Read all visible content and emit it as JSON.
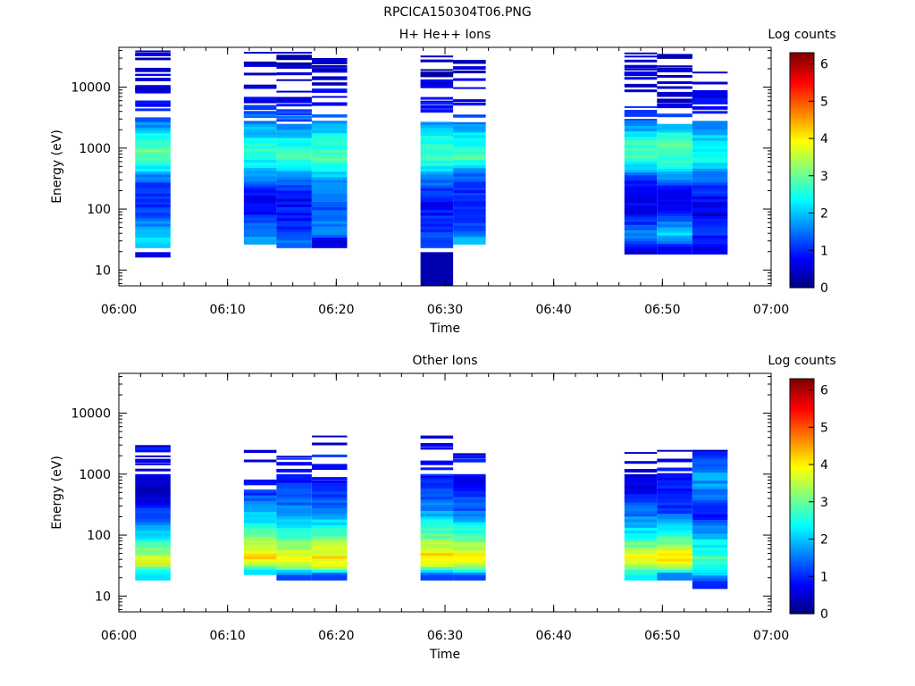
{
  "figure_title": "RPCICA150304T06.PNG",
  "chart_data": [
    {
      "type": "heatmap",
      "title": "H+ He++ Ions",
      "xlabel": "Time",
      "ylabel": "Energy (eV)",
      "colorbar_label": "Log counts",
      "x_range": [
        "06:00",
        "07:00"
      ],
      "x_ticks": [
        "06:00",
        "06:10",
        "06:20",
        "06:30",
        "06:40",
        "06:50",
        "07:00"
      ],
      "y_scale": "log",
      "y_range": [
        5.5,
        45000
      ],
      "y_ticks": [
        10,
        100,
        1000,
        10000
      ],
      "y_tick_labels": [
        "10",
        "100",
        "1000",
        "10000"
      ],
      "colorbar_range": [
        0,
        6.3
      ],
      "colorbar_ticks": [
        "0",
        "1",
        "2",
        "3",
        "4",
        "5",
        "6"
      ],
      "colorscale": [
        "#00007f",
        "#0000ff",
        "#007fff",
        "#00ffff",
        "#7fff7f",
        "#ffff00",
        "#ff7f00",
        "#ff0000",
        "#7f0000"
      ],
      "columns": [
        {
          "t_start": "06:01:30",
          "t_end": "06:04:45",
          "e_min": 16,
          "e_max": 40000,
          "dense_band": [
            28,
            3000
          ],
          "noise_levels": 22,
          "profile": [
            [
              16,
              0.6
            ],
            [
              22,
              1.2
            ],
            [
              30,
              2.3
            ],
            [
              45,
              2.0
            ],
            [
              80,
              1.2
            ],
            [
              150,
              1.1
            ],
            [
              300,
              1.3
            ],
            [
              500,
              2.4
            ],
            [
              800,
              3.0
            ],
            [
              1500,
              2.6
            ],
            [
              2500,
              1.6
            ],
            [
              5000,
              0.8
            ],
            [
              40000,
              0.4
            ]
          ]
        },
        {
          "t_start": "06:11:30",
          "t_end": "06:14:30",
          "e_min": 32,
          "e_max": 38000,
          "dense_band": [
            32,
            2800
          ],
          "noise_levels": 20,
          "profile": [
            [
              32,
              1.8
            ],
            [
              50,
              1.5
            ],
            [
              100,
              0.7
            ],
            [
              200,
              0.9
            ],
            [
              400,
              1.8
            ],
            [
              800,
              2.8
            ],
            [
              1500,
              2.2
            ],
            [
              2800,
              1.6
            ],
            [
              6000,
              0.7
            ],
            [
              38000,
              0.3
            ]
          ]
        },
        {
          "t_start": "06:14:30",
          "t_end": "06:17:45",
          "e_min": 28,
          "e_max": 38000,
          "dense_band": [
            28,
            2500
          ],
          "noise_levels": 18,
          "profile": [
            [
              28,
              1.4
            ],
            [
              60,
              1.0
            ],
            [
              150,
              0.8
            ],
            [
              300,
              1.4
            ],
            [
              700,
              2.8
            ],
            [
              1200,
              2.5
            ],
            [
              2500,
              1.6
            ],
            [
              6000,
              0.6
            ],
            [
              38000,
              0.3
            ]
          ]
        },
        {
          "t_start": "06:17:45",
          "t_end": "06:21:00",
          "e_min": 28,
          "e_max": 30000,
          "dense_band": [
            28,
            2700
          ],
          "noise_levels": 18,
          "profile": [
            [
              28,
              0.6
            ],
            [
              45,
              1.8
            ],
            [
              100,
              1.3
            ],
            [
              250,
              1.5
            ],
            [
              600,
              2.8
            ],
            [
              1200,
              2.6
            ],
            [
              2700,
              1.8
            ],
            [
              6000,
              0.8
            ],
            [
              30000,
              0.4
            ]
          ]
        },
        {
          "t_start": "06:27:45",
          "t_end": "06:30:45",
          "e_min": 5.5,
          "e_max": 33000,
          "dense_band": [
            28,
            2700
          ],
          "noise_levels": 18,
          "profile": [
            [
              5.5,
              0.3
            ],
            [
              16,
              0.4
            ],
            [
              28,
              1.2
            ],
            [
              60,
              1.0
            ],
            [
              150,
              0.8
            ],
            [
              300,
              1.6
            ],
            [
              700,
              2.9
            ],
            [
              1500,
              2.4
            ],
            [
              2700,
              1.6
            ],
            [
              6000,
              0.7
            ],
            [
              33000,
              0.3
            ]
          ]
        },
        {
          "t_start": "06:30:45",
          "t_end": "06:33:45",
          "e_min": 32,
          "e_max": 28000,
          "dense_band": [
            32,
            2500
          ],
          "noise_levels": 14,
          "profile": [
            [
              32,
              2.0
            ],
            [
              60,
              1.0
            ],
            [
              150,
              0.9
            ],
            [
              350,
              1.4
            ],
            [
              700,
              2.8
            ],
            [
              1400,
              2.4
            ],
            [
              2500,
              1.7
            ],
            [
              6000,
              0.7
            ],
            [
              28000,
              0.3
            ]
          ]
        },
        {
          "t_start": "06:46:30",
          "t_end": "06:49:30",
          "e_min": 22,
          "e_max": 37000,
          "dense_band": [
            22,
            2600
          ],
          "noise_levels": 18,
          "profile": [
            [
              22,
              0.5
            ],
            [
              35,
              1.8
            ],
            [
              60,
              1.0
            ],
            [
              100,
              0.6
            ],
            [
              300,
              0.8
            ],
            [
              600,
              2.6
            ],
            [
              1200,
              2.7
            ],
            [
              2600,
              1.4
            ],
            [
              6000,
              0.6
            ],
            [
              37000,
              0.3
            ]
          ]
        },
        {
          "t_start": "06:49:30",
          "t_end": "06:52:45",
          "e_min": 22,
          "e_max": 35000,
          "dense_band": [
            22,
            2500
          ],
          "noise_levels": 16,
          "profile": [
            [
              22,
              0.8
            ],
            [
              40,
              2.3
            ],
            [
              80,
              0.9
            ],
            [
              200,
              0.7
            ],
            [
              500,
              2.4
            ],
            [
              900,
              3.0
            ],
            [
              1600,
              2.6
            ],
            [
              2500,
              1.8
            ],
            [
              6000,
              0.6
            ],
            [
              35000,
              0.3
            ]
          ]
        },
        {
          "t_start": "06:52:45",
          "t_end": "06:56:00",
          "e_min": 22,
          "e_max": 18000,
          "dense_band": [
            22,
            2800
          ],
          "noise_levels": 12,
          "profile": [
            [
              22,
              0.7
            ],
            [
              50,
              1.2
            ],
            [
              80,
              0.5
            ],
            [
              300,
              1.3
            ],
            [
              600,
              2.4
            ],
            [
              1200,
              2.2
            ],
            [
              2800,
              1.6
            ],
            [
              6000,
              0.8
            ],
            [
              18000,
              0.4
            ]
          ]
        }
      ]
    },
    {
      "type": "heatmap",
      "title": "Other Ions",
      "xlabel": "Time",
      "ylabel": "Energy (eV)",
      "colorbar_label": "Log counts",
      "x_range": [
        "06:00",
        "07:00"
      ],
      "x_ticks": [
        "06:00",
        "06:10",
        "06:20",
        "06:30",
        "06:40",
        "06:50",
        "07:00"
      ],
      "y_scale": "log",
      "y_range": [
        5.5,
        45000
      ],
      "y_ticks": [
        10,
        100,
        1000,
        10000
      ],
      "y_tick_labels": [
        "10",
        "100",
        "1000",
        "10000"
      ],
      "colorbar_range": [
        0,
        6.3
      ],
      "colorbar_ticks": [
        "0",
        "1",
        "2",
        "3",
        "4",
        "5",
        "6"
      ],
      "colorscale": [
        "#00007f",
        "#0000ff",
        "#007fff",
        "#00ffff",
        "#7fff7f",
        "#ffff00",
        "#ff7f00",
        "#ff0000",
        "#7f0000"
      ],
      "columns": [
        {
          "t_start": "06:01:30",
          "t_end": "06:04:45",
          "e_min": 22,
          "e_max": 3000,
          "dense_band": [
            22,
            1000
          ],
          "noise_levels": 10,
          "profile": [
            [
              22,
              2.2
            ],
            [
              28,
              2.8
            ],
            [
              35,
              3.9
            ],
            [
              50,
              3.3
            ],
            [
              80,
              2.6
            ],
            [
              150,
              1.5
            ],
            [
              300,
              0.9
            ],
            [
              500,
              0.5
            ],
            [
              1000,
              0.5
            ],
            [
              3000,
              0.9
            ]
          ]
        },
        {
          "t_start": "06:11:30",
          "t_end": "06:14:30",
          "e_min": 27,
          "e_max": 2500,
          "dense_band": [
            27,
            560
          ],
          "noise_levels": 6,
          "profile": [
            [
              27,
              2.2
            ],
            [
              35,
              3.6
            ],
            [
              45,
              4.2
            ],
            [
              80,
              3.3
            ],
            [
              150,
              2.4
            ],
            [
              300,
              1.7
            ],
            [
              560,
              1.0
            ],
            [
              1500,
              0.7
            ],
            [
              2500,
              0.6
            ]
          ]
        },
        {
          "t_start": "06:14:30",
          "t_end": "06:17:45",
          "e_min": 22,
          "e_max": 2000,
          "dense_band": [
            22,
            1000
          ],
          "noise_levels": 6,
          "profile": [
            [
              22,
              1.2
            ],
            [
              30,
              3.2
            ],
            [
              45,
              3.9
            ],
            [
              80,
              3.0
            ],
            [
              150,
              2.2
            ],
            [
              300,
              1.5
            ],
            [
              800,
              0.9
            ],
            [
              2000,
              0.9
            ]
          ]
        },
        {
          "t_start": "06:17:45",
          "t_end": "06:21:00",
          "e_min": 22,
          "e_max": 4300,
          "dense_band": [
            22,
            800
          ],
          "noise_levels": 6,
          "profile": [
            [
              22,
              1.2
            ],
            [
              30,
              3.5
            ],
            [
              45,
              4.1
            ],
            [
              80,
              3.2
            ],
            [
              150,
              2.3
            ],
            [
              300,
              1.5
            ],
            [
              800,
              0.8
            ],
            [
              2500,
              0.9
            ],
            [
              4300,
              0.5
            ]
          ]
        },
        {
          "t_start": "06:27:45",
          "t_end": "06:30:45",
          "e_min": 22,
          "e_max": 4300,
          "dense_band": [
            22,
            900
          ],
          "noise_levels": 8,
          "profile": [
            [
              22,
              1.2
            ],
            [
              30,
              3.3
            ],
            [
              45,
              4.2
            ],
            [
              80,
              3.2
            ],
            [
              150,
              2.4
            ],
            [
              300,
              1.5
            ],
            [
              900,
              0.9
            ],
            [
              2500,
              0.9
            ],
            [
              4300,
              0.5
            ]
          ]
        },
        {
          "t_start": "06:30:45",
          "t_end": "06:33:45",
          "e_min": 22,
          "e_max": 2200,
          "dense_band": [
            22,
            1000
          ],
          "noise_levels": 4,
          "profile": [
            [
              22,
              1.2
            ],
            [
              30,
              3.4
            ],
            [
              45,
              4.0
            ],
            [
              80,
              3.1
            ],
            [
              150,
              2.2
            ],
            [
              300,
              1.3
            ],
            [
              1000,
              0.7
            ],
            [
              2200,
              0.9
            ]
          ]
        },
        {
          "t_start": "06:46:30",
          "t_end": "06:49:30",
          "e_min": 22,
          "e_max": 2300,
          "dense_band": [
            22,
            1000
          ],
          "noise_levels": 2,
          "profile": [
            [
              22,
              2.3
            ],
            [
              30,
              3.2
            ],
            [
              40,
              4.0
            ],
            [
              80,
              2.8
            ],
            [
              150,
              1.9
            ],
            [
              300,
              1.3
            ],
            [
              500,
              0.7
            ],
            [
              1000,
              0.6
            ],
            [
              2300,
              0.9
            ]
          ]
        },
        {
          "t_start": "06:49:30",
          "t_end": "06:52:45",
          "e_min": 22,
          "e_max": 2500,
          "dense_band": [
            22,
            1000
          ],
          "noise_levels": 3,
          "profile": [
            [
              22,
              1.6
            ],
            [
              30,
              3.3
            ],
            [
              40,
              4.3
            ],
            [
              70,
              3.3
            ],
            [
              150,
              2.2
            ],
            [
              250,
              1.1
            ],
            [
              500,
              1.0
            ],
            [
              1000,
              0.8
            ],
            [
              2500,
              1.0
            ]
          ]
        },
        {
          "t_start": "06:52:45",
          "t_end": "06:56:00",
          "e_min": 16,
          "e_max": 2500,
          "dense_band": [
            16,
            2500
          ],
          "noise_levels": 0,
          "profile": [
            [
              16,
              1.0
            ],
            [
              22,
              2.0
            ],
            [
              40,
              2.8
            ],
            [
              80,
              2.3
            ],
            [
              150,
              1.3
            ],
            [
              200,
              0.8
            ],
            [
              400,
              1.5
            ],
            [
              900,
              1.8
            ],
            [
              1500,
              1.4
            ],
            [
              2500,
              1.1
            ]
          ]
        }
      ]
    }
  ]
}
